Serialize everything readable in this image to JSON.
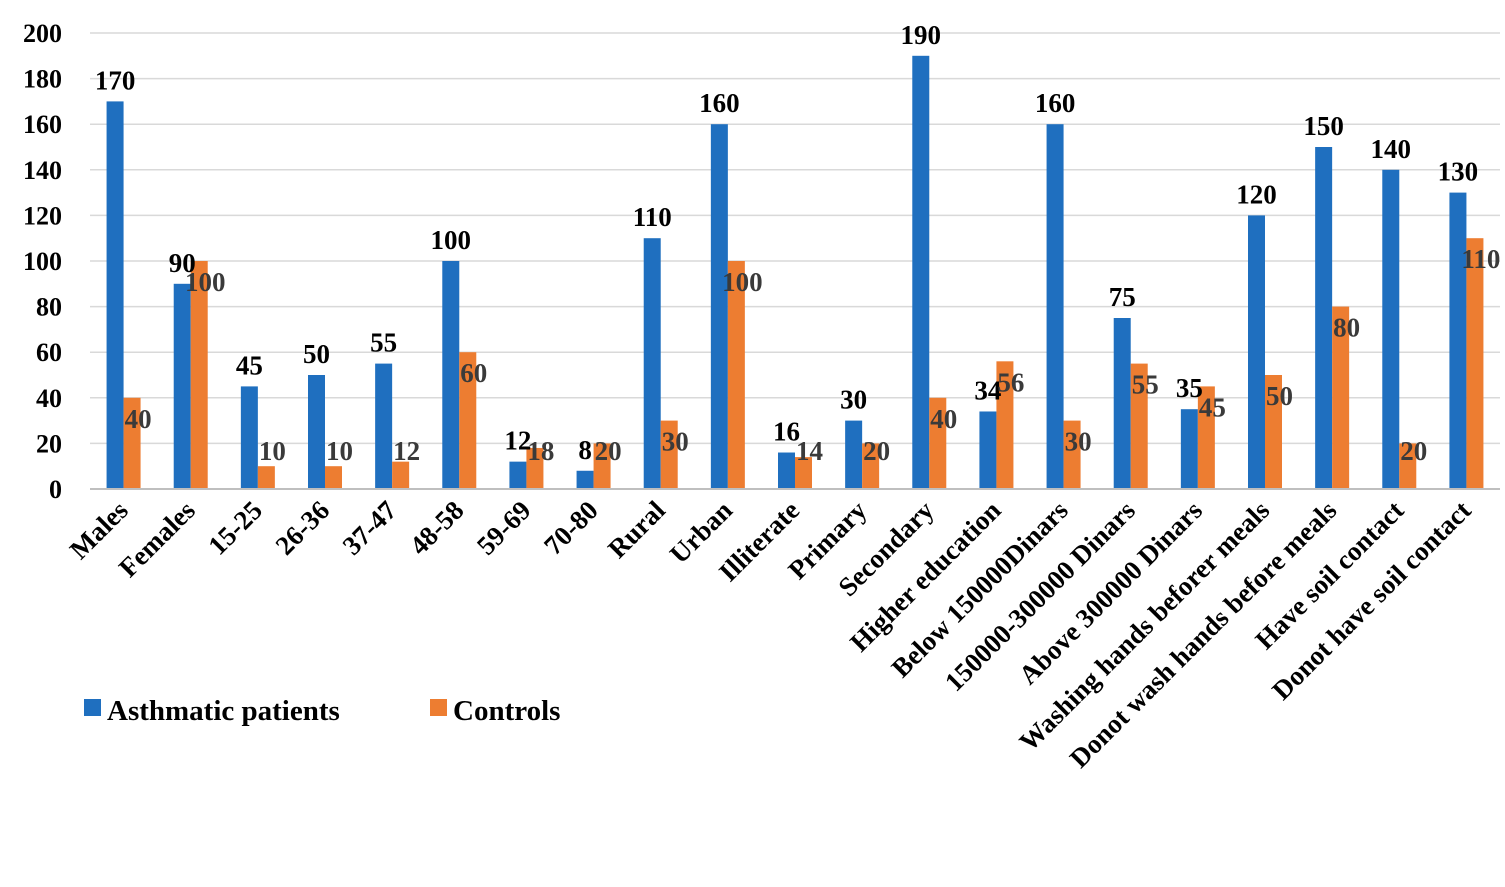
{
  "chart_data": {
    "type": "bar",
    "title": "",
    "xlabel": "",
    "ylabel": "",
    "ylim": [
      0,
      200
    ],
    "yticks": [
      0,
      20,
      40,
      60,
      80,
      100,
      120,
      140,
      160,
      180,
      200
    ],
    "grid": true,
    "legend_position": "bottom-left",
    "categories": [
      "Males",
      "Females",
      "15-25",
      "26-36",
      "37-47",
      "48-58",
      "59-69",
      "70-80",
      "Rural",
      "Urban",
      "Illiterate",
      "Primary",
      "Secondary",
      "Higher education",
      "Below 150000Dinars",
      "150000-300000 Dinars",
      "Above 300000 Dinars",
      "Washing hands beforer meals",
      "Donot wash hands before meals",
      "Have soil contact",
      "Donot have soil contact"
    ],
    "series": [
      {
        "name": "Asthmatic patients",
        "color": "#1f6fbf",
        "values": [
          170,
          90,
          45,
          50,
          55,
          100,
          12,
          8,
          110,
          160,
          16,
          30,
          190,
          34,
          160,
          75,
          35,
          120,
          150,
          140,
          130
        ]
      },
      {
        "name": "Controls",
        "color": "#ed7d31",
        "values": [
          40,
          100,
          10,
          10,
          12,
          60,
          18,
          20,
          30,
          100,
          14,
          20,
          40,
          56,
          30,
          55,
          45,
          50,
          80,
          20,
          110
        ]
      }
    ]
  }
}
